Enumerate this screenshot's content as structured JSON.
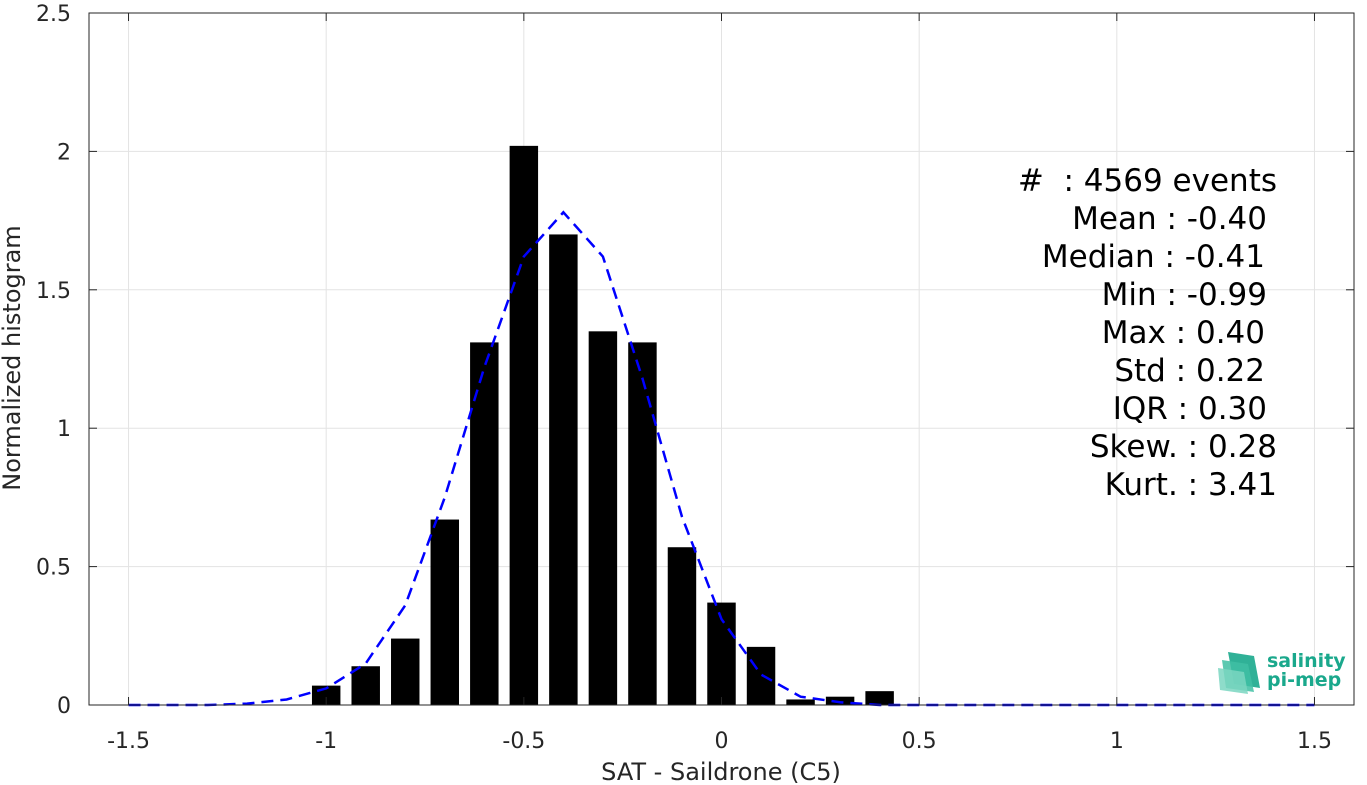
{
  "chart_data": {
    "type": "bar",
    "xlabel": "SAT - Saildrone (C5)",
    "ylabel": "Normalized histogram",
    "xlim": [
      -1.6,
      1.6
    ],
    "ylim": [
      0,
      2.5
    ],
    "grid": true,
    "x_ticks": [
      -1.5,
      -1,
      -0.5,
      0,
      0.5,
      1,
      1.5
    ],
    "x_tick_labels": [
      "-1.5",
      "-1",
      "-0.5",
      "0",
      "0.5",
      "1",
      "1.5"
    ],
    "y_ticks": [
      0,
      0.5,
      1,
      1.5,
      2,
      2.5
    ],
    "y_tick_labels": [
      "0",
      "0.5",
      "1",
      "1.5",
      "2",
      "2.5"
    ],
    "bin_width": 0.1,
    "bars": {
      "x": [
        -1.0,
        -0.9,
        -0.8,
        -0.7,
        -0.6,
        -0.5,
        -0.4,
        -0.3,
        -0.2,
        -0.1,
        0.0,
        0.1,
        0.2,
        0.3,
        0.4
      ],
      "values": [
        0.07,
        0.14,
        0.24,
        0.67,
        1.31,
        2.02,
        1.7,
        1.35,
        1.31,
        0.57,
        0.37,
        0.21,
        0.02,
        0.03,
        0.05
      ],
      "color": "#000000"
    },
    "fit_curve": {
      "style": "dashed",
      "color": "#0000ff",
      "x": [
        -1.5,
        -1.4,
        -1.3,
        -1.2,
        -1.1,
        -1.0,
        -0.9,
        -0.8,
        -0.7,
        -0.6,
        -0.5,
        -0.4,
        -0.3,
        -0.2,
        -0.1,
        0.0,
        0.1,
        0.2,
        0.3,
        0.4,
        0.5,
        0.6,
        0.7,
        0.8,
        0.9,
        1.0,
        1.1,
        1.2,
        1.3,
        1.4,
        1.5
      ],
      "y": [
        0,
        0,
        0,
        0.005,
        0.02,
        0.06,
        0.15,
        0.36,
        0.75,
        1.22,
        1.62,
        1.78,
        1.62,
        1.18,
        0.68,
        0.31,
        0.11,
        0.03,
        0.01,
        0,
        0,
        0,
        0,
        0,
        0,
        0,
        0,
        0,
        0,
        0,
        0
      ]
    },
    "annotations": [
      "#  : 4569 events",
      "Mean : -0.40",
      "Median : -0.41",
      "Min : -0.99",
      "Max : 0.40",
      "Std : 0.22",
      "IQR : 0.30",
      "Skew. : 0.28",
      "Kurt. : 3.41"
    ]
  },
  "logo": {
    "line1": "salinity",
    "line2": "pi-mep",
    "color": "#1aa88c"
  }
}
